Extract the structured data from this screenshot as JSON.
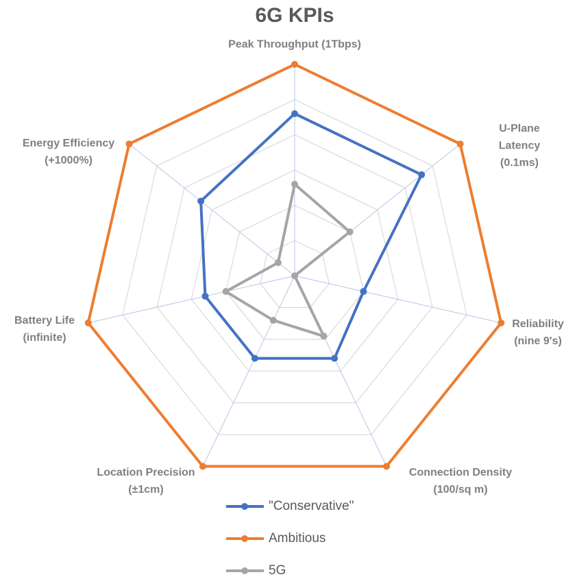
{
  "chart_data": {
    "type": "radar",
    "title": "6G KPIs",
    "categories": [
      "Peak Throughput (1Tbps)",
      "U-Plane Latency\n(0.1ms)",
      "Reliability\n(nine 9's)",
      "Connection Density\n(100/sq m)",
      "Location Precision\n(±1cm)",
      "Battery Life\n(infinite)",
      "Energy Efficiency\n(+1000%)"
    ],
    "series": [
      {
        "name": "\"Conservative\"",
        "color": "#4472c4",
        "values": [
          4.6,
          4.6,
          2,
          2.6,
          2.6,
          2.6,
          3.4
        ]
      },
      {
        "name": "Ambitious",
        "color": "#ed7d31",
        "values": [
          6,
          6,
          6,
          6,
          6,
          6,
          6
        ]
      },
      {
        "name": "5G",
        "color": "#a5a5a5",
        "values": [
          2.6,
          2,
          0,
          1.9,
          1.4,
          2,
          0.6
        ]
      }
    ],
    "rlim": [
      0,
      6
    ],
    "rticks": [
      0,
      1,
      2,
      3,
      4,
      5,
      6
    ],
    "grid": true,
    "legend": "bottom"
  }
}
